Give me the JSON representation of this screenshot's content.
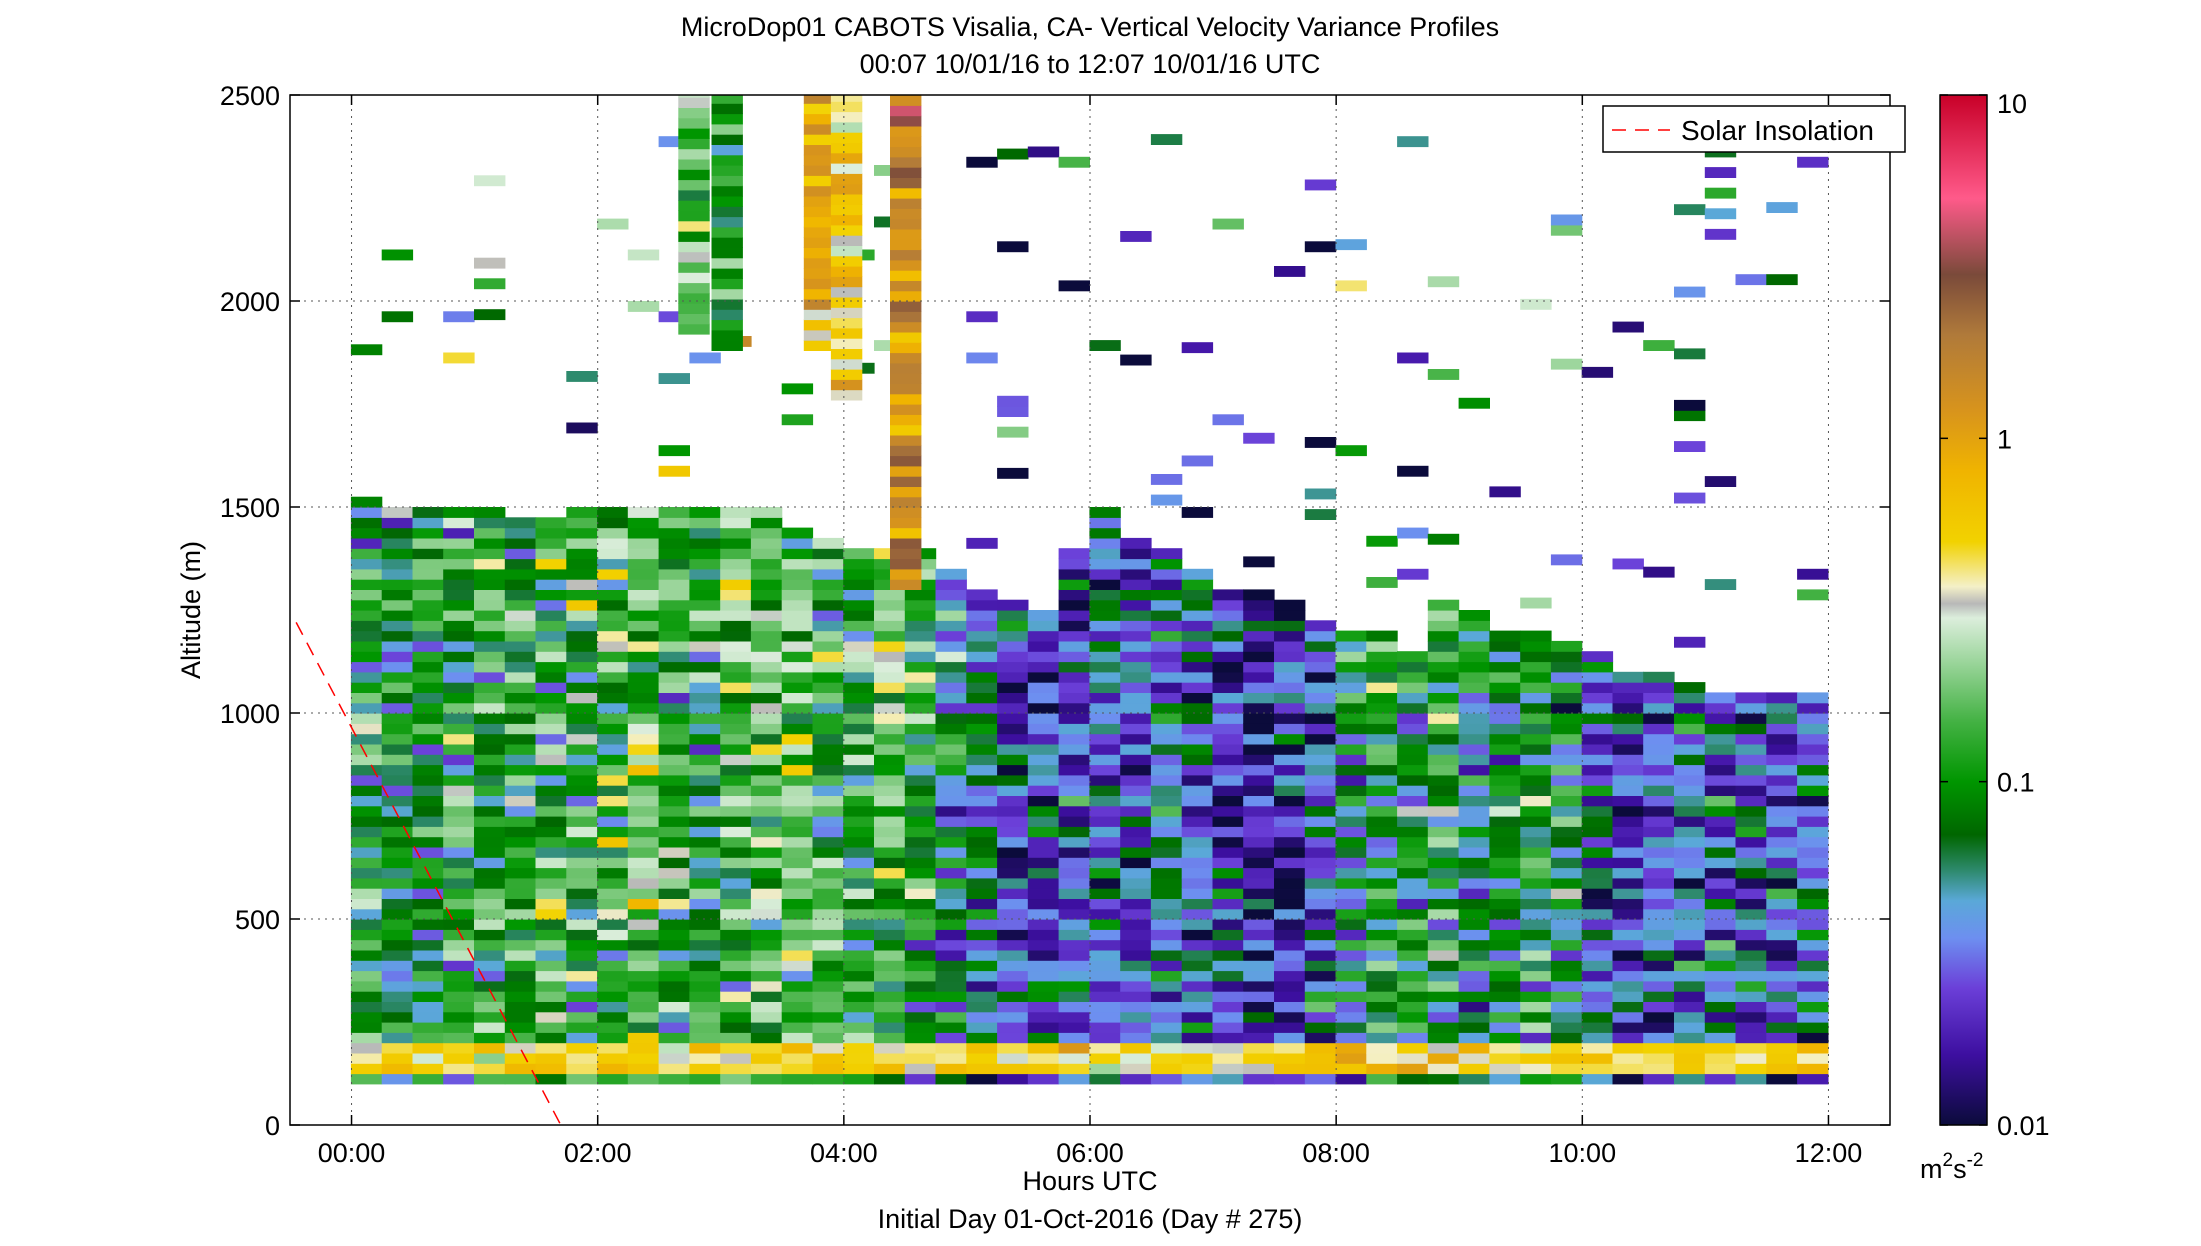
{
  "chart_data": {
    "type": "heatmap",
    "title": "MicroDop01 CABOTS Visalia, CA- Vertical Velocity Variance Profiles",
    "subtitle": "00:07 10/01/16 to 12:07 10/01/16  UTC",
    "xlabel": "Hours UTC",
    "xlabel2": "Initial Day 01-Oct-2016 (Day # 275)",
    "ylabel": "Altitude (m)",
    "xlim_hours": [
      -0.5,
      12.5
    ],
    "ylim": [
      0,
      2500
    ],
    "x_ticks": [
      {
        "value": 0,
        "label": "00:00"
      },
      {
        "value": 2,
        "label": "02:00"
      },
      {
        "value": 4,
        "label": "04:00"
      },
      {
        "value": 6,
        "label": "06:00"
      },
      {
        "value": 8,
        "label": "08:00"
      },
      {
        "value": 10,
        "label": "10:00"
      },
      {
        "value": 12,
        "label": "12:00"
      }
    ],
    "y_ticks": [
      {
        "value": 0,
        "label": "0"
      },
      {
        "value": 500,
        "label": "500"
      },
      {
        "value": 1000,
        "label": "1000"
      },
      {
        "value": 1500,
        "label": "1500"
      },
      {
        "value": 2000,
        "label": "2000"
      },
      {
        "value": 2500,
        "label": "2500"
      }
    ],
    "grid": true,
    "legend": {
      "position": "top-right",
      "entries": [
        {
          "label": "Solar Insolation",
          "style": "dashed",
          "color": "#ff0000"
        }
      ]
    },
    "colorbar": {
      "scale": "log",
      "range": [
        0.01,
        10
      ],
      "unit": "m²s⁻²",
      "unit_base": "m",
      "unit_exp1": "2",
      "unit_mid": "s",
      "unit_exp2": "-2",
      "ticks": [
        {
          "value": 0.01,
          "label": "0.01"
        },
        {
          "value": 0.1,
          "label": "0.1"
        },
        {
          "value": 1,
          "label": "1"
        },
        {
          "value": 10,
          "label": "10"
        }
      ],
      "colors": [
        {
          "value": 0.01,
          "color": "#0b0b3b"
        },
        {
          "value": 0.016,
          "color": "#3d0fa0"
        },
        {
          "value": 0.025,
          "color": "#6b3fd8"
        },
        {
          "value": 0.035,
          "color": "#6d8ff0"
        },
        {
          "value": 0.045,
          "color": "#5aa8d8"
        },
        {
          "value": 0.055,
          "color": "#2e8a6e"
        },
        {
          "value": 0.07,
          "color": "#006600"
        },
        {
          "value": 0.1,
          "color": "#009600"
        },
        {
          "value": 0.15,
          "color": "#44b244"
        },
        {
          "value": 0.22,
          "color": "#98d498"
        },
        {
          "value": 0.3,
          "color": "#dceedc"
        },
        {
          "value": 0.33,
          "color": "#b8b8b8"
        },
        {
          "value": 0.37,
          "color": "#f4f0c8"
        },
        {
          "value": 0.5,
          "color": "#f2d200"
        },
        {
          "value": 0.8,
          "color": "#f0b400"
        },
        {
          "value": 1.2,
          "color": "#d8941c"
        },
        {
          "value": 2.0,
          "color": "#b07a3a"
        },
        {
          "value": 3.0,
          "color": "#7a4a3a"
        },
        {
          "value": 5.0,
          "color": "#ff5a8a"
        },
        {
          "value": 10.0,
          "color": "#c80028"
        }
      ]
    },
    "solar_insolation_line": {
      "x_hours": [
        -0.45,
        1.7
      ],
      "y_m": [
        1220,
        0
      ]
    },
    "heatmap_grid": {
      "x_start_hours": 0.12,
      "x_step_hours": 0.25,
      "n_columns": 48,
      "y_start_m": 100,
      "y_step_m": 25
    },
    "column_tops_m": [
      1520,
      1500,
      1500,
      1500,
      1480,
      1470,
      1470,
      1480,
      1500,
      1500,
      1500,
      1500,
      1490,
      1480,
      1450,
      1410,
      1400,
      1380,
      1380,
      1350,
      1300,
      1270,
      1250,
      1400,
      1480,
      1420,
      1380,
      1350,
      1300,
      1280,
      1260,
      1220,
      1200,
      1180,
      1150,
      1260,
      1240,
      1200,
      1180,
      1160,
      1140,
      1100,
      1080,
      1060,
      1050,
      1040,
      1040,
      1050
    ],
    "column_mean_log": [
      -1.05,
      -1.1,
      -1.15,
      -1.05,
      -0.95,
      -1.0,
      -0.9,
      -0.95,
      -0.85,
      -0.8,
      -0.95,
      -1.0,
      -0.85,
      -0.8,
      -0.85,
      -0.9,
      -1.0,
      -0.8,
      -1.05,
      -1.25,
      -1.35,
      -1.5,
      -1.55,
      -1.5,
      -1.45,
      -1.55,
      -1.4,
      -1.45,
      -1.6,
      -1.65,
      -1.7,
      -1.5,
      -1.2,
      -1.0,
      -1.1,
      -1.0,
      -1.2,
      -1.15,
      -1.1,
      -1.25,
      -1.5,
      -1.55,
      -1.6,
      -1.45,
      -1.4,
      -1.5,
      -1.55,
      -1.45
    ],
    "high_altitude_towers": [
      {
        "x_hours": 2.78,
        "bottom_m": 1920,
        "top_m": 2500,
        "mean_log": -0.75
      },
      {
        "x_hours": 3.05,
        "bottom_m": 1880,
        "top_m": 2500,
        "mean_log": -0.95
      },
      {
        "x_hours": 3.8,
        "bottom_m": 1880,
        "top_m": 2500,
        "mean_log": -0.1
      },
      {
        "x_hours": 4.02,
        "bottom_m": 1760,
        "top_m": 2500,
        "mean_log": -0.3
      },
      {
        "x_hours": 4.5,
        "bottom_m": 1300,
        "top_m": 2500,
        "mean_log": 0.15
      }
    ],
    "near_surface_band": {
      "bottom_m": 110,
      "top_m": 180,
      "mean_log": -0.3
    }
  }
}
